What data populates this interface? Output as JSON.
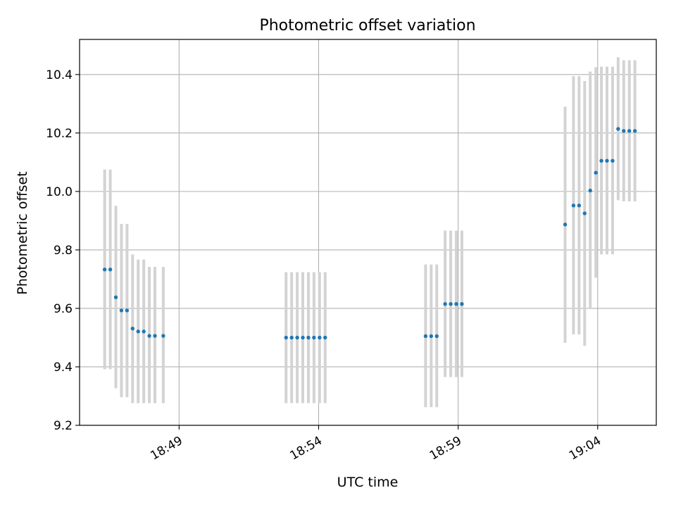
{
  "chart_data": {
    "type": "scatter",
    "title": "Photometric offset variation",
    "xlabel": "UTC time",
    "ylabel": "Photometric offset",
    "x_axis": "time",
    "xlim": [
      "18:45:26",
      "19:06:06"
    ],
    "ylim": [
      9.2,
      10.52
    ],
    "x_ticks": [
      "18:49",
      "18:54",
      "18:59",
      "19:04"
    ],
    "y_ticks": [
      "9.2",
      "9.4",
      "9.6",
      "9.8",
      "10.0",
      "10.2",
      "10.4"
    ],
    "grid": true,
    "legend": "none",
    "colors": {
      "point": "#1f77b4",
      "errorbar": "#d3d3d3",
      "grid": "#b0b0b0"
    },
    "series": [
      {
        "x": [
          "18:46:20",
          "18:46:32",
          "18:46:44",
          "18:46:56",
          "18:47:08",
          "18:47:20",
          "18:47:32",
          "18:47:44",
          "18:47:56",
          "18:48:08",
          "18:48:26",
          "18:52:50",
          "18:53:02",
          "18:53:14",
          "18:53:26",
          "18:53:38",
          "18:53:50",
          "18:54:02",
          "18:54:14",
          "18:57:50",
          "18:58:02",
          "18:58:14",
          "18:58:32",
          "18:58:44",
          "18:58:56",
          "18:59:08",
          "19:02:50",
          "19:03:08",
          "19:03:20",
          "19:03:32",
          "19:03:44",
          "19:03:56",
          "19:04:08",
          "19:04:20",
          "19:04:32",
          "19:04:44",
          "19:04:56",
          "19:05:08",
          "19:05:20"
        ],
        "y": [
          9.733,
          9.733,
          9.638,
          9.593,
          9.593,
          9.531,
          9.521,
          9.521,
          9.506,
          9.506,
          9.506,
          9.5,
          9.5,
          9.5,
          9.5,
          9.5,
          9.5,
          9.5,
          9.5,
          9.505,
          9.505,
          9.505,
          9.615,
          9.615,
          9.615,
          9.615,
          9.887,
          9.952,
          9.952,
          9.925,
          10.003,
          10.064,
          10.105,
          10.105,
          10.105,
          10.214,
          10.207,
          10.207,
          10.207
        ],
        "y_low": [
          9.392,
          9.392,
          9.327,
          9.296,
          9.296,
          9.276,
          9.276,
          9.276,
          9.276,
          9.276,
          9.276,
          9.276,
          9.276,
          9.276,
          9.276,
          9.276,
          9.276,
          9.276,
          9.276,
          9.262,
          9.262,
          9.262,
          9.365,
          9.365,
          9.365,
          9.365,
          9.482,
          9.511,
          9.511,
          9.472,
          9.6,
          9.705,
          9.785,
          9.785,
          9.785,
          9.97,
          9.966,
          9.966,
          9.966
        ],
        "y_high": [
          10.075,
          10.075,
          9.951,
          9.889,
          9.889,
          9.784,
          9.767,
          9.767,
          9.742,
          9.742,
          9.742,
          9.724,
          9.724,
          9.724,
          9.724,
          9.724,
          9.724,
          9.724,
          9.724,
          9.75,
          9.75,
          9.75,
          9.866,
          9.866,
          9.866,
          9.866,
          10.29,
          10.394,
          10.394,
          10.378,
          10.41,
          10.425,
          10.427,
          10.427,
          10.427,
          10.459,
          10.449,
          10.449,
          10.449
        ]
      }
    ]
  }
}
